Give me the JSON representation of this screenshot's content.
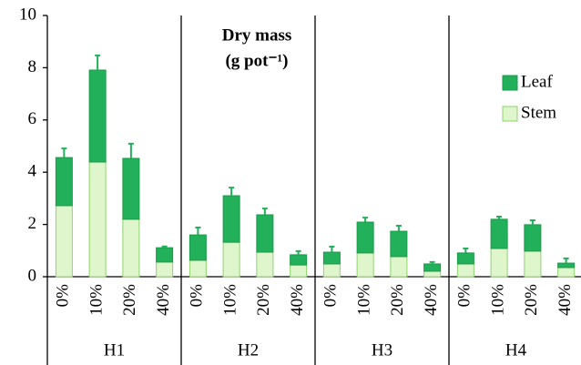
{
  "chart_data": {
    "type": "stacked_bar",
    "annotation": [
      "Dry mass",
      "(g pot⁻¹)"
    ],
    "groups": [
      "H1",
      "H2",
      "H3",
      "H4"
    ],
    "categories": [
      "0%",
      "10%",
      "20%",
      "40%",
      "0%",
      "10%",
      "20%",
      "40%",
      "0%",
      "10%",
      "20%",
      "40%",
      "0%",
      "10%",
      "20%",
      "40%"
    ],
    "series": [
      {
        "name": "Stem",
        "color": "#dff5cc",
        "edge": "#8fd46e",
        "error_color": "#000000",
        "values": [
          2.72,
          4.39,
          2.2,
          0.56,
          0.63,
          1.32,
          0.94,
          0.45,
          0.49,
          0.91,
          0.77,
          0.21,
          0.49,
          1.08,
          0.98,
          0.35
        ],
        "errors": [
          0.83,
          0.6,
          0.59,
          0.17,
          0.24,
          0.46,
          0.35,
          0.14,
          0.05,
          0.17,
          0.17,
          0.05,
          0.03,
          0.21,
          0.27,
          0.1
        ]
      },
      {
        "name": "Leaf",
        "color": "#22b05a",
        "edge": "#1a9a4a",
        "error_color": "#22b05a",
        "values": [
          1.84,
          3.52,
          2.33,
          0.55,
          0.97,
          1.78,
          1.43,
          0.39,
          0.45,
          1.18,
          0.97,
          0.28,
          0.42,
          1.12,
          1.01,
          0.17
        ],
        "errors": [
          0.35,
          0.56,
          0.56,
          0.05,
          0.28,
          0.31,
          0.24,
          0.14,
          0.21,
          0.17,
          0.21,
          0.07,
          0.17,
          0.1,
          0.17,
          0.18
        ]
      }
    ],
    "ylim": [
      0,
      10
    ],
    "yticks": [
      0,
      2,
      4,
      6,
      8,
      10
    ]
  }
}
